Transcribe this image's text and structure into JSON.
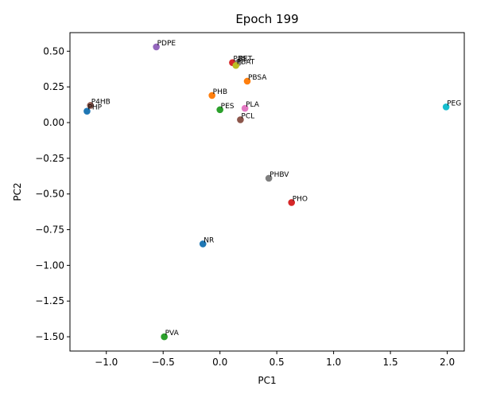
{
  "chart_data": {
    "type": "scatter",
    "title": "Epoch 199",
    "xlabel": "PC1",
    "ylabel": "PC2",
    "xlim": [
      -1.32,
      2.15
    ],
    "ylim": [
      -1.6,
      0.63
    ],
    "xticks": [
      -1.0,
      -0.5,
      0.0,
      0.5,
      1.0,
      1.5,
      2.0
    ],
    "yticks": [
      -1.5,
      -1.25,
      -1.0,
      -0.75,
      -0.5,
      -0.25,
      0.0,
      0.25,
      0.5
    ],
    "xtick_labels": [
      "−1.0",
      "−0.5",
      "0.0",
      "0.5",
      "1.0",
      "1.5",
      "2.0"
    ],
    "ytick_labels": [
      "−1.50",
      "−1.25",
      "−1.00",
      "−0.75",
      "−0.50",
      "−0.25",
      "0.00",
      "0.25",
      "0.50"
    ],
    "grid": false,
    "points": [
      {
        "label": "PHP",
        "x": -1.17,
        "y": 0.08,
        "color": "#1f77b4"
      },
      {
        "label": "P4HB",
        "x": -1.14,
        "y": 0.12,
        "color": "#8c564b"
      },
      {
        "label": "PDPE",
        "x": -0.56,
        "y": 0.53,
        "color": "#9467bd"
      },
      {
        "label": "PBS",
        "x": 0.11,
        "y": 0.42,
        "color": "#d62728"
      },
      {
        "label": "PET",
        "x": 0.16,
        "y": 0.42,
        "color": "#7f7f7f"
      },
      {
        "label": "PBAT",
        "x": 0.14,
        "y": 0.4,
        "color": "#bcbd22"
      },
      {
        "label": "PBSA",
        "x": 0.24,
        "y": 0.29,
        "color": "#ff7f0e"
      },
      {
        "label": "PHB",
        "x": -0.07,
        "y": 0.19,
        "color": "#ff7f0e"
      },
      {
        "label": "PES",
        "x": 0.0,
        "y": 0.09,
        "color": "#2ca02c"
      },
      {
        "label": "PLA",
        "x": 0.22,
        "y": 0.1,
        "color": "#e377c2"
      },
      {
        "label": "PCL",
        "x": 0.18,
        "y": 0.02,
        "color": "#8c564b"
      },
      {
        "label": "PEG",
        "x": 1.99,
        "y": 0.11,
        "color": "#17becf"
      },
      {
        "label": "PHBV",
        "x": 0.43,
        "y": -0.39,
        "color": "#7f7f7f"
      },
      {
        "label": "PHO",
        "x": 0.63,
        "y": -0.56,
        "color": "#d62728"
      },
      {
        "label": "NR",
        "x": -0.15,
        "y": -0.85,
        "color": "#1f77b4"
      },
      {
        "label": "PVA",
        "x": -0.49,
        "y": -1.5,
        "color": "#2ca02c"
      }
    ]
  }
}
